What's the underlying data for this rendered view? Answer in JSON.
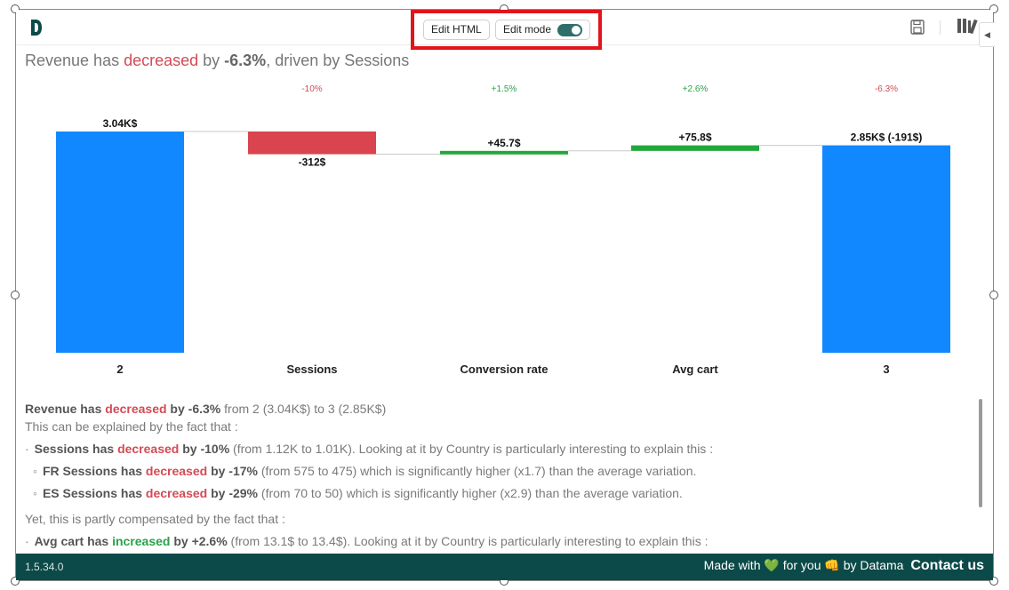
{
  "toolbar": {
    "edit_html_label": "Edit HTML",
    "edit_mode_label": "Edit mode",
    "edit_mode_on": true,
    "logo_icon": "datama-logo-icon",
    "save_icon": "save-icon",
    "library_icon": "library-icon",
    "collapse_icon": "chevron-left-icon"
  },
  "headline": {
    "prefix": "Revenue has ",
    "verb": "decreased",
    "mid": " by ",
    "value": "-6.3%",
    "suffix": ", driven by Sessions"
  },
  "chart_data": {
    "type": "bar",
    "subtype": "waterfall",
    "categories": [
      "2",
      "Sessions",
      "Conversion rate",
      "Avg cart",
      "3"
    ],
    "values": [
      3040,
      -312,
      45.7,
      75.8,
      2850
    ],
    "bar_kind": [
      "total",
      "delta",
      "delta",
      "delta",
      "total"
    ],
    "value_labels": [
      "3.04K$",
      "-312$",
      "+45.7$",
      "+75.8$",
      "2.85K$ (-191$)"
    ],
    "pct_labels": [
      "",
      "-10%",
      "+1.5%",
      "+2.6%",
      "-6.3%"
    ],
    "ylim": [
      0,
      3200
    ],
    "colors": {
      "total": "#1188ff",
      "negative": "#d9444e",
      "positive": "#21a83a",
      "connector": "#c9c9c9",
      "pct_negative": "#d24b55",
      "pct_positive": "#2aa24a"
    }
  },
  "explanation": {
    "summary": {
      "subject": "Revenue has ",
      "verb": "decreased",
      "by": " by -6.3%",
      "rest": " from 2 (3.04K$) to 3 (2.85K$)"
    },
    "intro": "This can be explained by the fact that :",
    "items": [
      {
        "bullet": "·",
        "level": 1,
        "subject": "Sessions has ",
        "verb": "decreased",
        "tone": "red",
        "by": " by -10%",
        "rest": " (from 1.12K to 1.01K). Looking at it by Country is particularly interesting to explain this :"
      },
      {
        "bullet": "◦",
        "level": 2,
        "subject": "FR Sessions has ",
        "verb": "decreased",
        "tone": "red",
        "by": " by -17%",
        "rest": " (from 575 to 475) which is significantly higher (x1.7) than the average variation."
      },
      {
        "bullet": "◦",
        "level": 2,
        "subject": "ES Sessions has ",
        "verb": "decreased",
        "tone": "red",
        "by": " by -29%",
        "rest": " (from 70 to 50) which is significantly higher (x2.9) than the average variation."
      }
    ],
    "compensation_intro": "Yet, this is partly compensated by the fact that :",
    "comp_items": [
      {
        "bullet": "·",
        "level": 1,
        "subject": "Avg cart has ",
        "verb": "increased",
        "tone": "green",
        "by": " by +2.6%",
        "rest": " (from 13.1$ to 13.4$). Looking at it by Country is particularly interesting to explain this :"
      }
    ]
  },
  "footer": {
    "version": "1.5.34.0",
    "made_with": "Made with",
    "heart": "💚",
    "for_you": "for you",
    "hand": "👊",
    "by": "by Datama",
    "contact": "Contact us"
  }
}
